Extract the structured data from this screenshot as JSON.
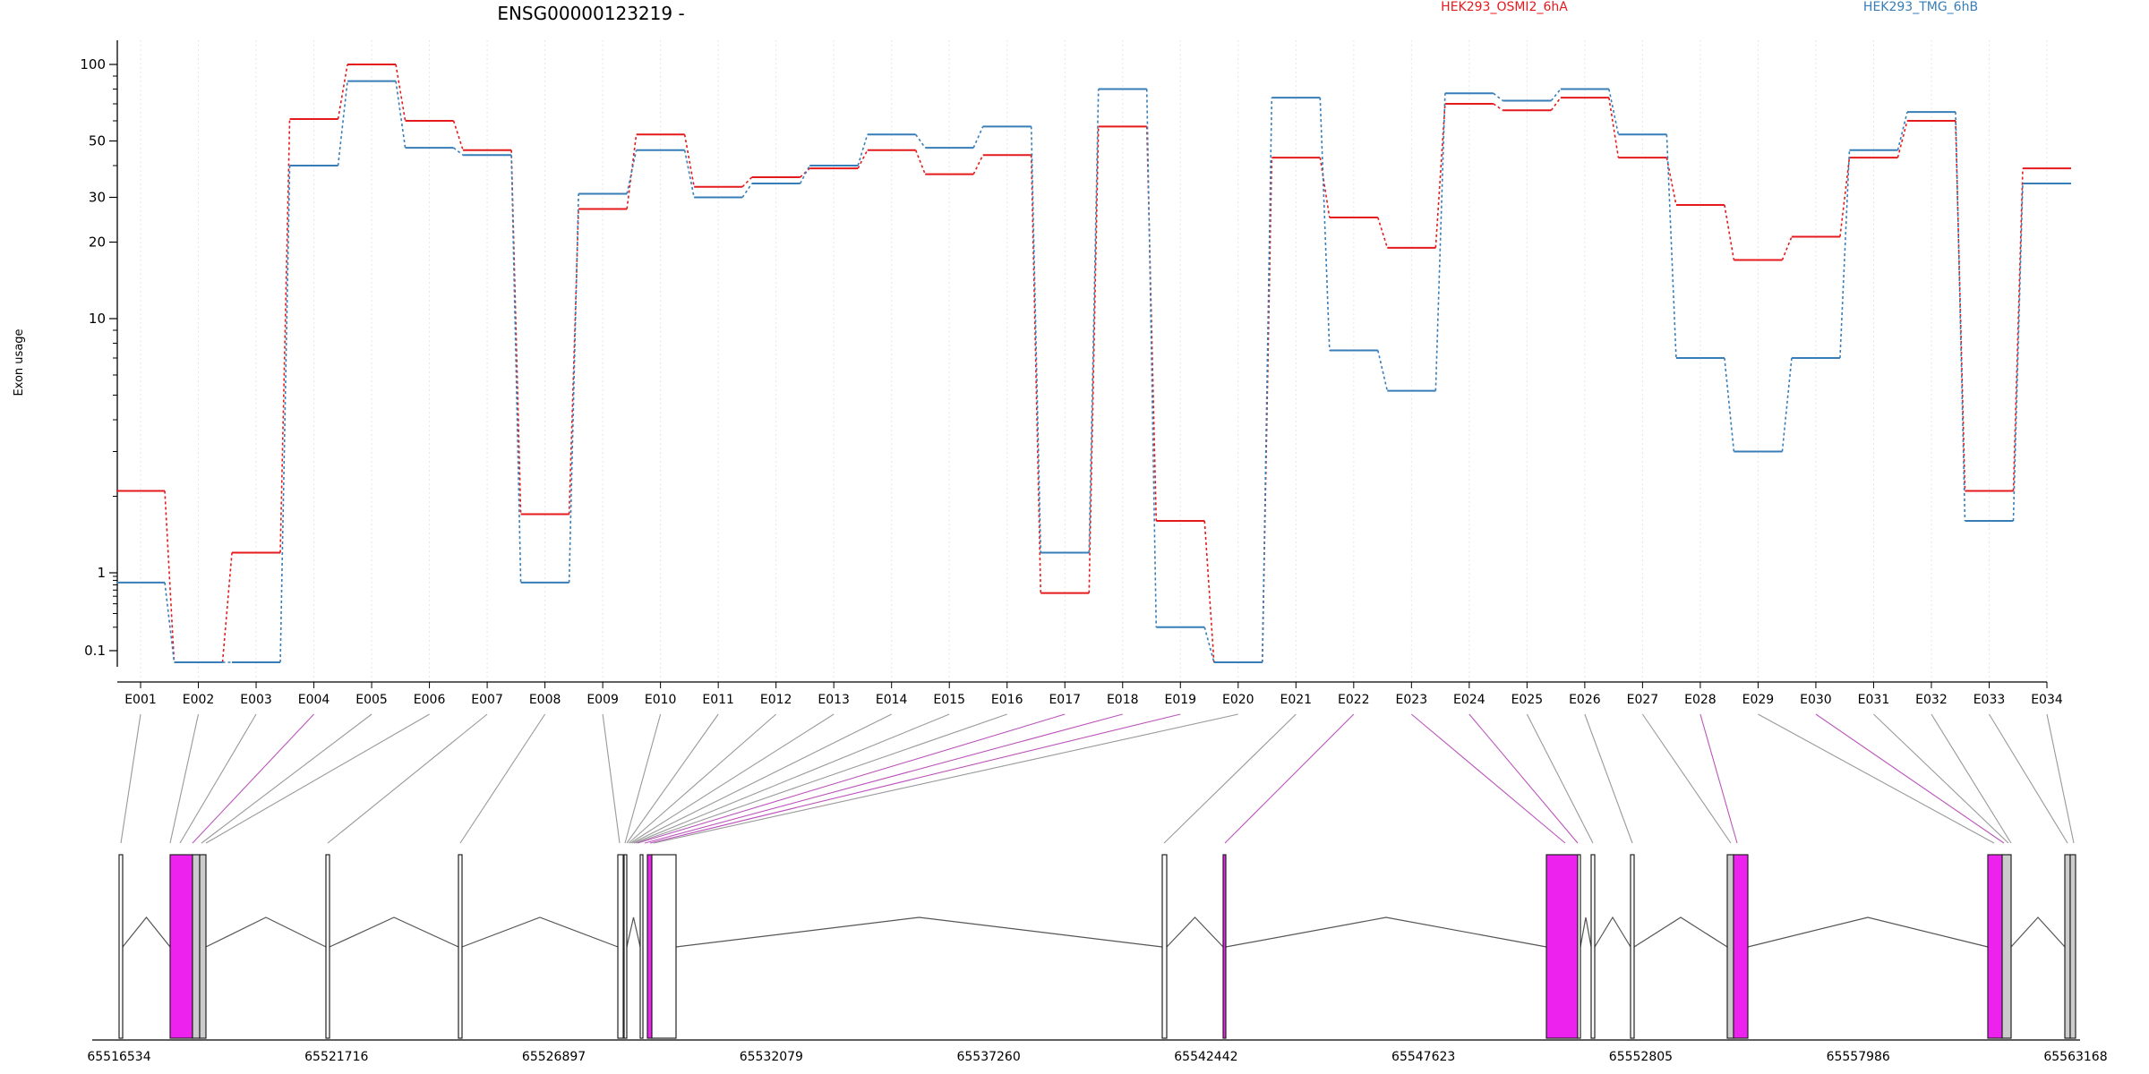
{
  "title": "ENSG00000123219 -",
  "ylabel": "Exon usage",
  "legend": [
    {
      "name": "HEK293_OSMI2_6hA",
      "color": "#e41a1c"
    },
    {
      "name": "HEK293_TMG_6hB",
      "color": "#377eb8"
    }
  ],
  "chart_data": {
    "type": "line",
    "title": "ENSG00000123219 -",
    "ylabel": "Exon usage",
    "yscale": "log",
    "yticks": [
      "0.1",
      "1",
      "10",
      "20",
      "30",
      "50",
      "100"
    ],
    "categories": [
      "E001",
      "E002",
      "E003",
      "E004",
      "E005",
      "E006",
      "E007",
      "E008",
      "E009",
      "E010",
      "E011",
      "E012",
      "E013",
      "E014",
      "E015",
      "E016",
      "E017",
      "E018",
      "E019",
      "E020",
      "E021",
      "E022",
      "E023",
      "E024",
      "E025",
      "E026",
      "E027",
      "E028",
      "E029",
      "E030",
      "E031",
      "E032",
      "E033",
      "E034"
    ],
    "series": [
      {
        "name": "HEK293_OSMI2_6hA",
        "color": "#e41a1c",
        "values": [
          2.1,
          0.07,
          1.2,
          61,
          100,
          60,
          46,
          1.7,
          27,
          53,
          33,
          36,
          39,
          46,
          37,
          44,
          0.55,
          57,
          1.6,
          0.07,
          43,
          25,
          19,
          70,
          66,
          74,
          43,
          28,
          17,
          21,
          43,
          60,
          2.1,
          39
        ]
      },
      {
        "name": "HEK293_TMG_6hB",
        "color": "#377eb8",
        "values": [
          0.75,
          0.07,
          0.07,
          40,
          86,
          47,
          44,
          0.75,
          31,
          46,
          30,
          34,
          40,
          53,
          47,
          57,
          1.2,
          80,
          0.2,
          0.07,
          74,
          7.5,
          5.2,
          77,
          72,
          80,
          53,
          7,
          3,
          7,
          46,
          65,
          1.6,
          34
        ]
      }
    ],
    "genomic_axis_ticks": [
      "65516534",
      "65521716",
      "65526897",
      "65532079",
      "65537260",
      "65542442",
      "65547623",
      "65552805",
      "65557986",
      "65563168"
    ],
    "highlight_color": "#ff00ff",
    "grid": "vertical dotted at each exon"
  }
}
